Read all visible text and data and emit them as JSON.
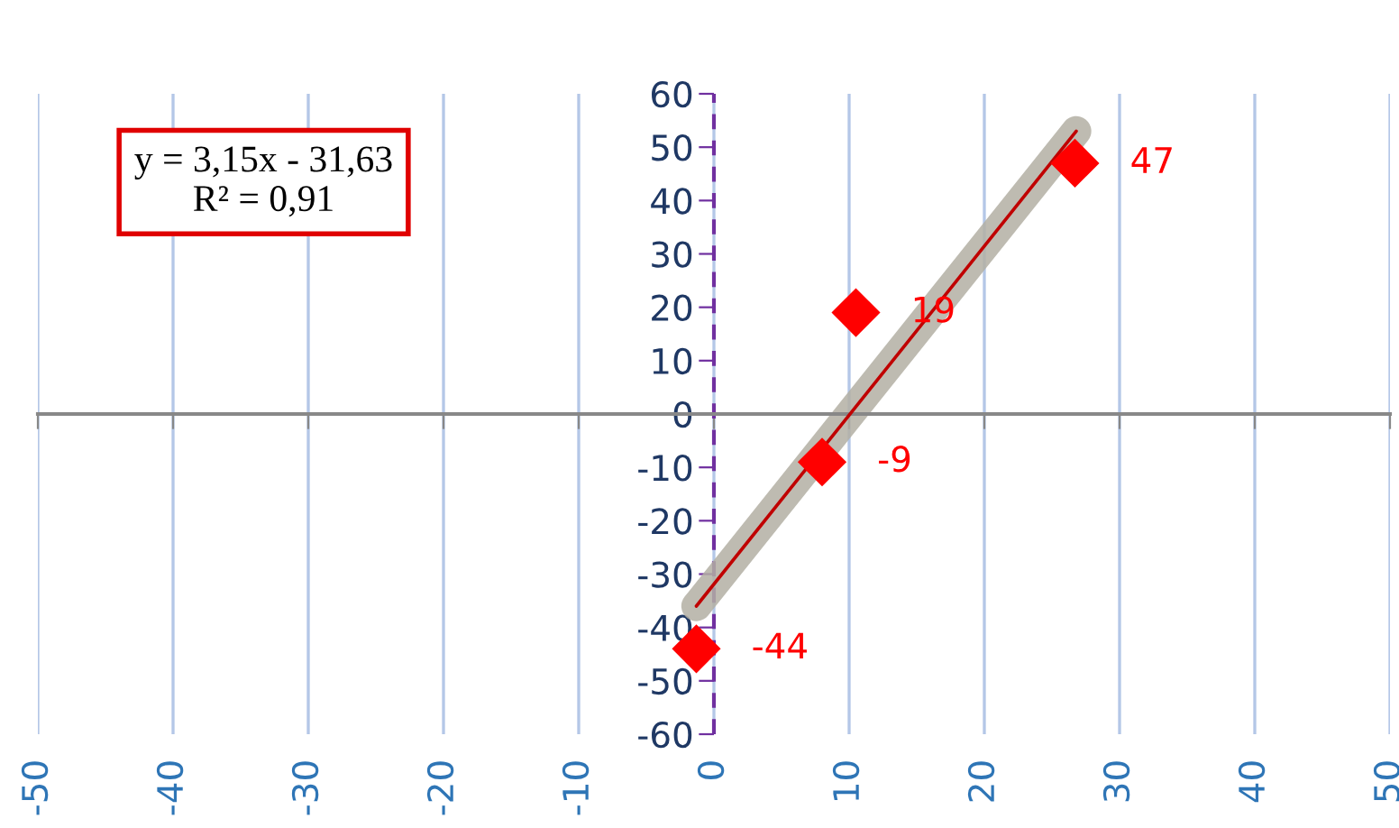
{
  "chart_data": {
    "type": "scatter",
    "series": [
      {
        "type": "line",
        "color": "#b3afa3",
        "x": [
          -1.3,
          26.8
        ],
        "values": [
          -36,
          53
        ]
      },
      {
        "type": "line",
        "color": "#c00000",
        "x": [
          -1.3,
          26.8
        ],
        "values": [
          -36,
          53
        ]
      },
      {
        "color": "#ff0000",
        "x": [
          -1.3,
          8,
          10.5,
          26.7
        ],
        "values": [
          -44,
          -9,
          19,
          47
        ],
        "value_labels": [
          "-44",
          "-9",
          "19",
          "47"
        ],
        "marker": "diamond"
      }
    ],
    "ref_lines": [
      {
        "axis": "x",
        "value": 0,
        "color": "#7030a0",
        "line_style": "dashed"
      }
    ],
    "annotations": [
      "y = 3,15x - 31,63\nR² = 0,91"
    ],
    "xlim": [
      -50,
      50
    ],
    "xticks": [
      -50,
      -40,
      -30,
      -20,
      -10,
      0,
      10,
      20,
      30,
      40,
      50
    ],
    "ylim": [
      -60,
      60
    ],
    "yticks": [
      -60,
      -50,
      -40,
      -30,
      -20,
      -10,
      0,
      10,
      20,
      30,
      40,
      50,
      60
    ],
    "grid": "x",
    "legend": false
  }
}
